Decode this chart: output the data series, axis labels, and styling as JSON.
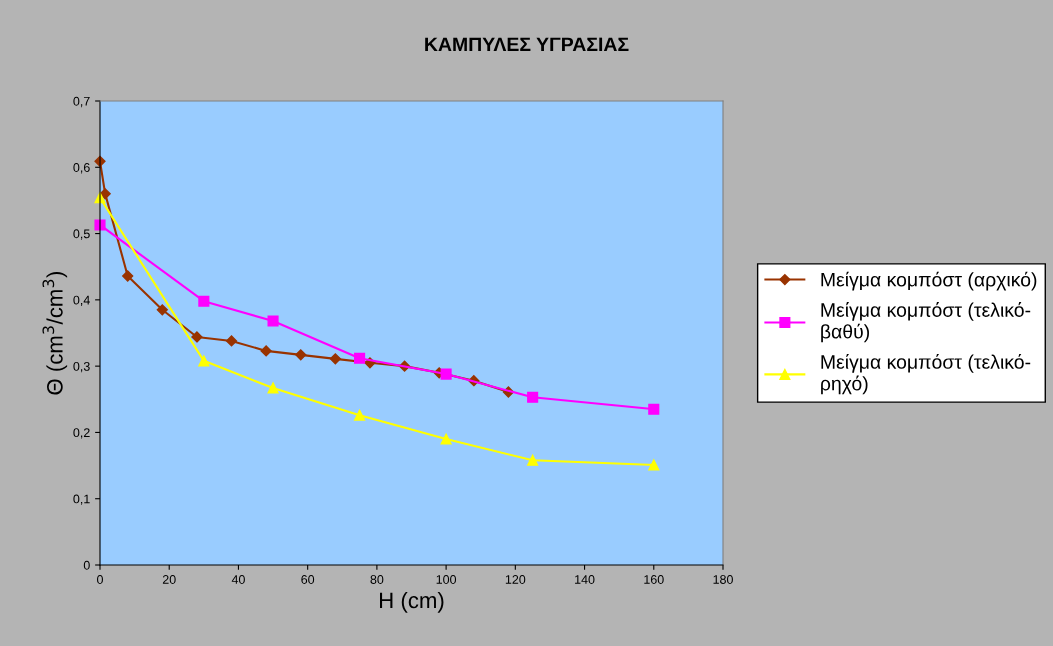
{
  "chart_data": {
    "type": "line",
    "title": "ΚΑΜΠΥΛΕΣ ΥΓΡΑΣΙΑΣ",
    "xlabel": "H (cm)",
    "ylabel": "Θ (cm$^{3}$/cm$^{3}$)",
    "series": [
      {
        "name": "Μείγμα κομπόστ (αρχικό)",
        "color": "#993300",
        "marker": "diamond",
        "x": [
          0,
          1.5,
          8,
          18,
          28,
          38,
          48,
          58,
          68,
          78,
          88,
          98,
          108,
          118
        ],
        "values": [
          0.609,
          0.56,
          0.436,
          0.385,
          0.344,
          0.338,
          0.323,
          0.317,
          0.311,
          0.305,
          0.3,
          0.29,
          0.278,
          0.261
        ]
      },
      {
        "name": "Μείγμα κομπόστ (τελικό-\nβαθύ)",
        "color": "#ff00ff",
        "marker": "square",
        "x": [
          0,
          30,
          50,
          75,
          100,
          125,
          160
        ],
        "values": [
          0.513,
          0.398,
          0.368,
          0.312,
          0.288,
          0.253,
          0.235
        ]
      },
      {
        "name": "Μείγμα κομπόστ (τελικό-\nρηχό)",
        "color": "#ffff00",
        "marker": "triangle",
        "x": [
          0,
          30,
          50,
          75,
          100,
          125,
          160
        ],
        "values": [
          0.554,
          0.308,
          0.267,
          0.226,
          0.19,
          0.158,
          0.151
        ]
      }
    ],
    "xlim": [
      0,
      180
    ],
    "xticks": [
      0,
      20,
      40,
      60,
      80,
      100,
      120,
      140,
      160,
      180
    ],
    "ylim": [
      0,
      0.7
    ],
    "yticks": [
      0,
      {
        "value": 0.1,
        "label": "0,1"
      },
      {
        "value": 0.2,
        "label": "0,2"
      },
      {
        "value": 0.3,
        "label": "0,3"
      },
      {
        "value": 0.4,
        "label": "0,4"
      },
      {
        "value": 0.5,
        "label": "0,5"
      },
      {
        "value": 0.6,
        "label": "0,6"
      },
      {
        "value": 0.7,
        "label": "0,7"
      }
    ],
    "grid": false,
    "legend": "right",
    "line_style": "solid"
  }
}
